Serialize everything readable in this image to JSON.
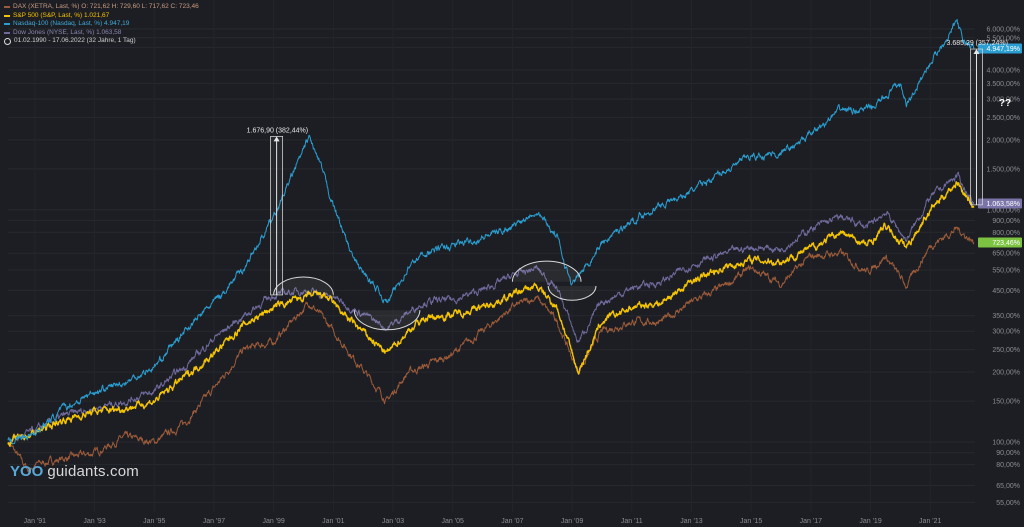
{
  "legend": {
    "dax": "DAX (XETRA, Last, %)  O: 721,62  H: 729,60  L: 717,62  C: 723,46",
    "sp500": "S&P 500 (S&P, Last, %)  1.021,67",
    "nasdaq": "Nasdaq-100 (Nasdaq, Last, %)  4.947,19",
    "dow": "Dow Jones (NYSE, Last, %)  1.063,58",
    "range": "01.02.1990 - 17.06.2022  (32 Jahre, 1 Tag)"
  },
  "logo": {
    "mark": "YOO",
    "text": "guidants.com"
  },
  "colors": {
    "background": "#1c1e23",
    "nasdaq": "#2b9ed1",
    "sp500": "#f5c400",
    "dow": "#6f6a9c",
    "dax": "#9c5b3a",
    "nasdaq_badge": "#2b9ed1",
    "dow_badge": "#7a74a8",
    "dax_badge": "#7cc341",
    "sp_badge": "#f5c400"
  },
  "chart_data": {
    "type": "line",
    "scale": "log",
    "x_ticks": [
      "Jan '91",
      "Jan '93",
      "Jan '95",
      "Jan '97",
      "Jan '99",
      "Jan '01",
      "Jan '03",
      "Jan '05",
      "Jan '07",
      "Jan '09",
      "Jan '11",
      "Jan '13",
      "Jan '15",
      "Jan '17",
      "Jan '19",
      "Jan '21"
    ],
    "y_ticks": [
      "6.000,00%",
      "5.500,00%",
      "5.000,00%",
      "4.000,00%",
      "3.500,00%",
      "3.000,00%",
      "2.500,00%",
      "2.000,00%",
      "1.500,00%",
      "1.000,00%",
      "900,00%",
      "800,00%",
      "650,00%",
      "550,00%",
      "450,00%",
      "350,00%",
      "300,00%",
      "250,00%",
      "200,00%",
      "150,00%",
      "100,00%",
      "90,00%",
      "80,00%",
      "65,00%",
      "55,00%"
    ],
    "y_tick_values": [
      6000,
      5500,
      5000,
      4000,
      3500,
      3000,
      2500,
      2000,
      1500,
      1000,
      900,
      800,
      650,
      550,
      450,
      350,
      300,
      250,
      200,
      150,
      100,
      90,
      80,
      65,
      55
    ],
    "x_range": [
      1990.1,
      2022.5
    ],
    "y_range": [
      50,
      8000
    ],
    "series": [
      {
        "name": "Nasdaq-100",
        "last_label": "4.947,19%",
        "points": [
          [
            1990.1,
            100
          ],
          [
            1991,
            110
          ],
          [
            1992,
            140
          ],
          [
            1993,
            165
          ],
          [
            1994,
            180
          ],
          [
            1995,
            210
          ],
          [
            1996,
            300
          ],
          [
            1997,
            400
          ],
          [
            1998,
            560
          ],
          [
            1999,
            930
          ],
          [
            2000.2,
            2050
          ],
          [
            2000.6,
            1500
          ],
          [
            2001,
            1050
          ],
          [
            2001.7,
            600
          ],
          [
            2002.8,
            400
          ],
          [
            2003.5,
            560
          ],
          [
            2004,
            650
          ],
          [
            2005,
            700
          ],
          [
            2006,
            760
          ],
          [
            2007,
            850
          ],
          [
            2007.8,
            1000
          ],
          [
            2008.5,
            760
          ],
          [
            2009.0,
            470
          ],
          [
            2010,
            720
          ],
          [
            2011,
            900
          ],
          [
            2012,
            1050
          ],
          [
            2013,
            1200
          ],
          [
            2014,
            1450
          ],
          [
            2015,
            1700
          ],
          [
            2016,
            1750
          ],
          [
            2017,
            2100
          ],
          [
            2018,
            2700
          ],
          [
            2019,
            2700
          ],
          [
            2020,
            3500
          ],
          [
            2020.2,
            2800
          ],
          [
            2021,
            4300
          ],
          [
            2021.9,
            6500
          ],
          [
            2022.1,
            5300
          ],
          [
            2022.46,
            4947
          ]
        ]
      },
      {
        "name": "S&P 500",
        "last_label": "1.021,67",
        "points": [
          [
            1990.1,
            100
          ],
          [
            1991,
            110
          ],
          [
            1992,
            125
          ],
          [
            1993,
            135
          ],
          [
            1994,
            140
          ],
          [
            1995,
            150
          ],
          [
            1996,
            190
          ],
          [
            1997,
            240
          ],
          [
            1998,
            320
          ],
          [
            1999,
            380
          ],
          [
            2000,
            420
          ],
          [
            2000.7,
            430
          ],
          [
            2001.5,
            340
          ],
          [
            2002.8,
            240
          ],
          [
            2003.5,
            300
          ],
          [
            2004,
            340
          ],
          [
            2005,
            355
          ],
          [
            2006,
            380
          ],
          [
            2007,
            430
          ],
          [
            2007.8,
            470
          ],
          [
            2008.5,
            380
          ],
          [
            2009.2,
            200
          ],
          [
            2010,
            330
          ],
          [
            2011,
            380
          ],
          [
            2012,
            400
          ],
          [
            2013,
            490
          ],
          [
            2014,
            560
          ],
          [
            2015,
            610
          ],
          [
            2016,
            600
          ],
          [
            2017,
            680
          ],
          [
            2018,
            800
          ],
          [
            2018.9,
            700
          ],
          [
            2019.5,
            850
          ],
          [
            2020.2,
            690
          ],
          [
            2021,
            1000
          ],
          [
            2021.9,
            1320
          ],
          [
            2022.46,
            1022
          ]
        ]
      },
      {
        "name": "Dow Jones",
        "last_label": "1.063,58%",
        "points": [
          [
            1990.1,
            100
          ],
          [
            1991,
            112
          ],
          [
            1992,
            130
          ],
          [
            1993,
            140
          ],
          [
            1994,
            150
          ],
          [
            1995,
            165
          ],
          [
            1996,
            210
          ],
          [
            1997,
            280
          ],
          [
            1998,
            350
          ],
          [
            1999,
            430
          ],
          [
            2000,
            450
          ],
          [
            2001,
            420
          ],
          [
            2002.8,
            310
          ],
          [
            2003.5,
            360
          ],
          [
            2004,
            400
          ],
          [
            2005,
            410
          ],
          [
            2006,
            450
          ],
          [
            2007,
            520
          ],
          [
            2007.8,
            560
          ],
          [
            2008.5,
            460
          ],
          [
            2009.2,
            270
          ],
          [
            2010,
            400
          ],
          [
            2011,
            460
          ],
          [
            2012,
            490
          ],
          [
            2013,
            580
          ],
          [
            2014,
            640
          ],
          [
            2015,
            690
          ],
          [
            2016,
            680
          ],
          [
            2017,
            830
          ],
          [
            2018,
            930
          ],
          [
            2018.9,
            840
          ],
          [
            2019.5,
            980
          ],
          [
            2020.2,
            740
          ],
          [
            2021,
            1130
          ],
          [
            2021.9,
            1400
          ],
          [
            2022.46,
            1064
          ]
        ]
      },
      {
        "name": "DAX",
        "last_label": "723,46%",
        "points": [
          [
            1990.1,
            100
          ],
          [
            1990.8,
            75
          ],
          [
            1991,
            80
          ],
          [
            1992,
            85
          ],
          [
            1993,
            90
          ],
          [
            1994,
            105
          ],
          [
            1995,
            100
          ],
          [
            1996,
            120
          ],
          [
            1997,
            170
          ],
          [
            1998,
            250
          ],
          [
            1999,
            270
          ],
          [
            2000.2,
            400
          ],
          [
            2001,
            300
          ],
          [
            2002.8,
            150
          ],
          [
            2003.5,
            200
          ],
          [
            2004,
            210
          ],
          [
            2005,
            240
          ],
          [
            2006,
            300
          ],
          [
            2007,
            380
          ],
          [
            2007.8,
            420
          ],
          [
            2008.5,
            330
          ],
          [
            2009.2,
            200
          ],
          [
            2010,
            300
          ],
          [
            2011,
            330
          ],
          [
            2012,
            330
          ],
          [
            2013,
            400
          ],
          [
            2014,
            460
          ],
          [
            2015,
            560
          ],
          [
            2016,
            480
          ],
          [
            2017,
            630
          ],
          [
            2018,
            650
          ],
          [
            2018.9,
            540
          ],
          [
            2019.5,
            630
          ],
          [
            2020.2,
            470
          ],
          [
            2021,
            700
          ],
          [
            2021.9,
            830
          ],
          [
            2022.46,
            723
          ]
        ]
      }
    ],
    "annotations": [
      {
        "label": "1.676,90 (382,44%)",
        "x": 1999.1,
        "y_from": 430,
        "y_to": 2070
      },
      {
        "label": "3.685,29 (357,24%)",
        "x": 2022.55,
        "y_from": 1050,
        "y_to": 4920
      },
      {
        "label": "??",
        "x": 2023.3,
        "y": 2800
      }
    ],
    "arcs": [
      {
        "x_from": 1999.0,
        "x_to": 2001.0,
        "y": 430,
        "dir": "up"
      },
      {
        "x_from": 2001.7,
        "x_to": 2003.9,
        "y": 370,
        "dir": "down"
      },
      {
        "x_from": 2007.0,
        "x_to": 2009.3,
        "y": 490,
        "dir": "up"
      },
      {
        "x_from": 2008.2,
        "x_to": 2009.8,
        "y": 470,
        "dir": "down"
      }
    ]
  }
}
